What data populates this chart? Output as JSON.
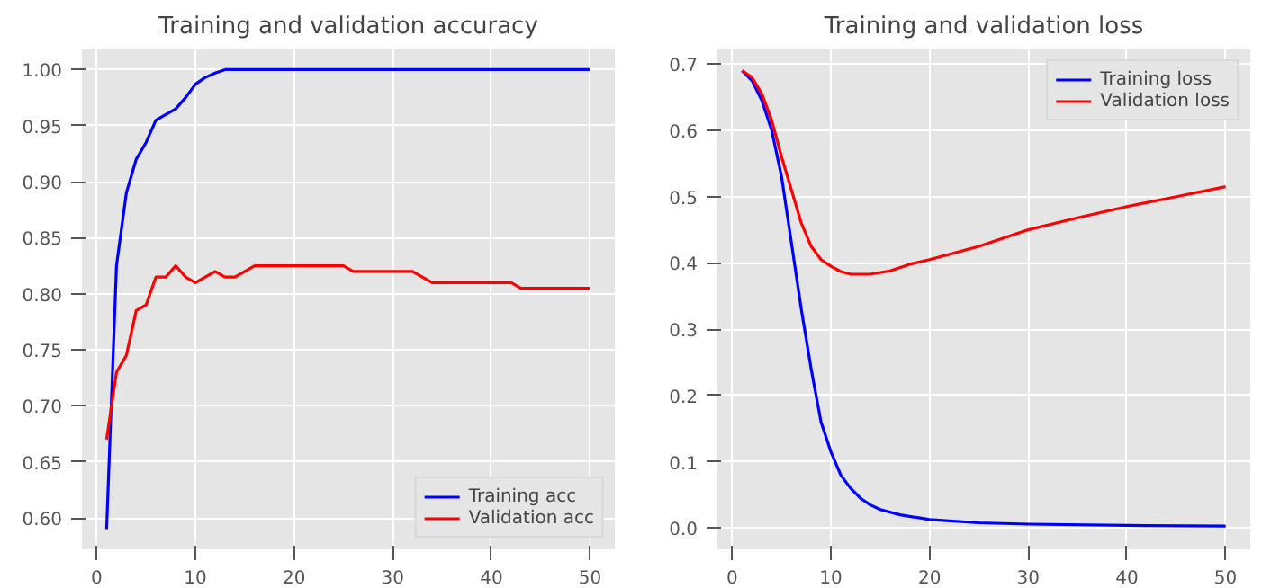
{
  "chart_data": [
    {
      "type": "line",
      "title": "Training and validation accuracy",
      "xlim": [
        -1.5,
        52.5
      ],
      "xticks": [
        0,
        10,
        20,
        30,
        40,
        50
      ],
      "ylim": [
        0.572,
        1.018
      ],
      "yticks": [
        {
          "value": 0.6,
          "label": "0.60"
        },
        {
          "value": 0.65,
          "label": "0.65"
        },
        {
          "value": 0.7,
          "label": "0.70"
        },
        {
          "value": 0.75,
          "label": "0.75"
        },
        {
          "value": 0.8,
          "label": "0.80"
        },
        {
          "value": 0.85,
          "label": "0.85"
        },
        {
          "value": 0.9,
          "label": "0.90"
        },
        {
          "value": 0.95,
          "label": "0.95"
        },
        {
          "value": 1.0,
          "label": "1.00"
        }
      ],
      "grid": true,
      "legend": "bottom right",
      "series": [
        {
          "name": "Training acc",
          "color": "#0000ff",
          "x": [
            1,
            2,
            3,
            4,
            5,
            6,
            7,
            8,
            9,
            10,
            11,
            12,
            13,
            16,
            17,
            50
          ],
          "values": [
            0.59,
            0.825,
            0.89,
            0.92,
            0.935,
            0.955,
            0.96,
            0.965,
            0.975,
            0.987,
            0.993,
            0.997,
            1.0,
            1.0,
            1.0,
            1.0
          ]
        },
        {
          "name": "Validation acc",
          "color": "#ff0000",
          "x": [
            1,
            2,
            3,
            4,
            5,
            6,
            7,
            8,
            9,
            10,
            11,
            12,
            13,
            14,
            15,
            16,
            25,
            26,
            32,
            34,
            42,
            43,
            50
          ],
          "values": [
            0.67,
            0.73,
            0.745,
            0.785,
            0.79,
            0.815,
            0.815,
            0.825,
            0.815,
            0.81,
            0.815,
            0.82,
            0.815,
            0.815,
            0.82,
            0.825,
            0.825,
            0.82,
            0.82,
            0.81,
            0.81,
            0.805,
            0.805
          ]
        }
      ]
    },
    {
      "type": "line",
      "title": "Training and validation loss",
      "xlim": [
        -1.5,
        52.5
      ],
      "xticks": [
        0,
        10,
        20,
        30,
        40,
        50
      ],
      "ylim": [
        -0.032,
        0.722
      ],
      "yticks": [
        {
          "value": 0,
          "label": "0.0"
        },
        {
          "value": 0.1,
          "label": "0.1"
        },
        {
          "value": 0.2,
          "label": "0.2"
        },
        {
          "value": 0.3,
          "label": "0.3"
        },
        {
          "value": 0.4,
          "label": "0.4"
        },
        {
          "value": 0.5,
          "label": "0.5"
        },
        {
          "value": 0.6,
          "label": "0.6"
        },
        {
          "value": 0.7,
          "label": "0.7"
        }
      ],
      "grid": true,
      "legend": "top right",
      "series": [
        {
          "name": "Training loss",
          "color": "#0000ff",
          "x": [
            1,
            2,
            3,
            4,
            5,
            6,
            7,
            8,
            9,
            10,
            11,
            12,
            13,
            14,
            15,
            17,
            20,
            25,
            30,
            40,
            50
          ],
          "values": [
            0.69,
            0.675,
            0.645,
            0.6,
            0.53,
            0.43,
            0.33,
            0.24,
            0.16,
            0.115,
            0.08,
            0.06,
            0.045,
            0.035,
            0.028,
            0.02,
            0.013,
            0.008,
            0.006,
            0.004,
            0.003
          ]
        },
        {
          "name": "Validation loss",
          "color": "#ff0000",
          "x": [
            1,
            2,
            3,
            4,
            5,
            6,
            7,
            8,
            9,
            10,
            11,
            12,
            14,
            16,
            18,
            20,
            25,
            30,
            35,
            40,
            45,
            50
          ],
          "values": [
            0.69,
            0.68,
            0.655,
            0.615,
            0.56,
            0.51,
            0.46,
            0.425,
            0.405,
            0.395,
            0.387,
            0.383,
            0.383,
            0.388,
            0.398,
            0.405,
            0.425,
            0.45,
            0.468,
            0.485,
            0.5,
            0.515
          ]
        }
      ]
    }
  ]
}
